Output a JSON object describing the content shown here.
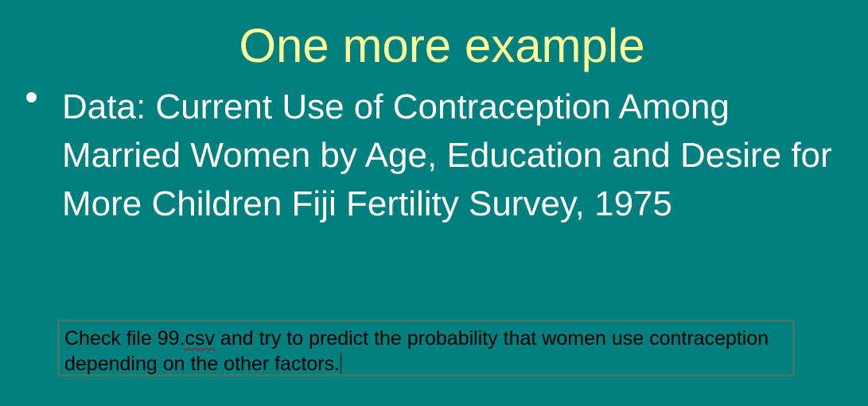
{
  "slide": {
    "title": "One more example",
    "bullet_text": "Data: Current Use of Contraception Among Married Women by Age, Education and Desire for More Children Fiji Fertility Survey, 1975",
    "note": {
      "part1": "Check file 99.",
      "misspelled_word": "csv",
      "part2": " and try to predict the probability that women use contraception depending on the other factors."
    }
  },
  "colors": {
    "background": "#007f7f",
    "title": "#ffff99",
    "body_text": "#ffffff",
    "note_border": "#3e7868"
  }
}
